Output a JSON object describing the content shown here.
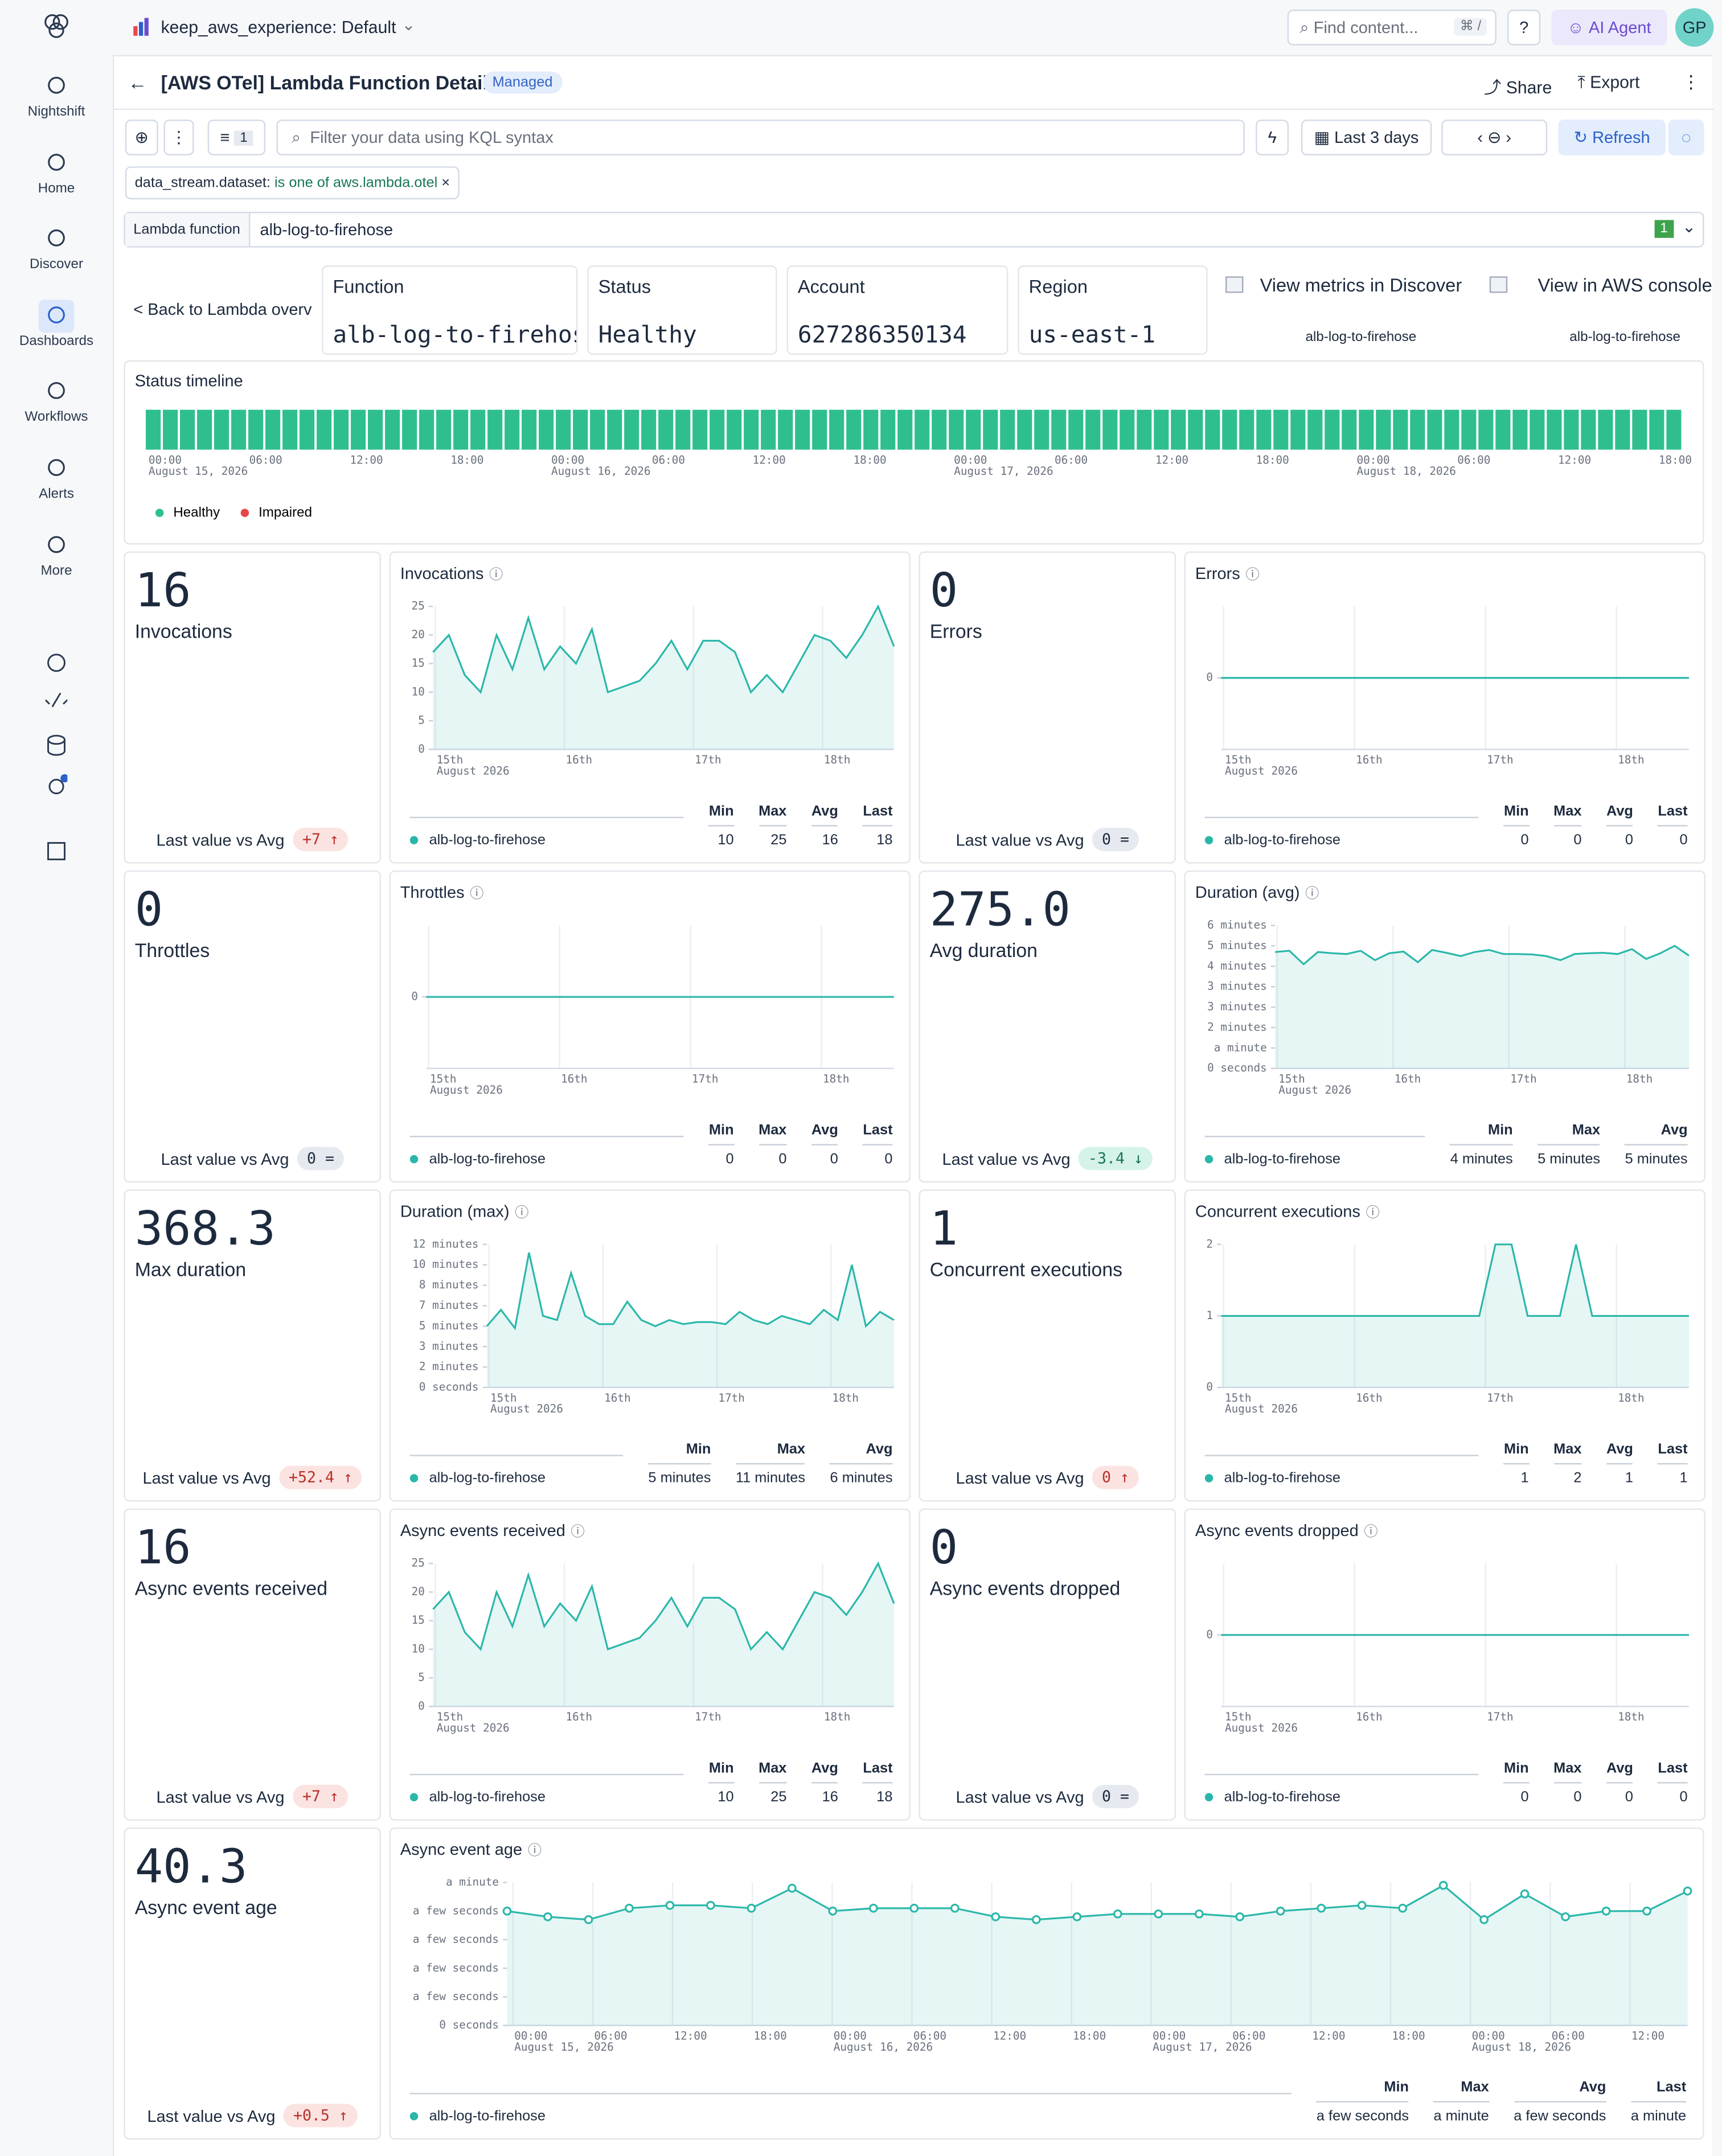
{
  "sidebar": {
    "items": [
      "Nightshift",
      "Home",
      "Discover",
      "Dashboards",
      "Workflows",
      "Alerts",
      "More"
    ],
    "active": 3
  },
  "topbar": {
    "space": "keep_aws_experience: Default",
    "search": "Find content...",
    "shortcut": "⌘ /",
    "ai": "AI Agent",
    "avatar": "GP"
  },
  "header": {
    "title": "[AWS OTel] Lambda Function Detail",
    "badge": "Managed",
    "share": "Share",
    "export": "Export"
  },
  "query": {
    "filter_count": "1",
    "placeholder": "Filter your data using KQL syntax",
    "time": "Last 3 days",
    "refresh": "Refresh"
  },
  "pill": {
    "field": "data_stream.dataset:",
    "op": "is one of",
    "value": "aws.lambda.otel"
  },
  "control": {
    "label": "Lambda function",
    "value": "alb-log-to-firehose",
    "count": "1"
  },
  "info": {
    "back": "< Back to Lambda overv",
    "cards": [
      {
        "label": "Function",
        "value": "alb-log-to-firehose"
      },
      {
        "label": "Status",
        "value": "Healthy"
      },
      {
        "label": "Account",
        "value": "627286350134"
      },
      {
        "label": "Region",
        "value": "us-east-1"
      }
    ],
    "links": [
      {
        "title": "View metrics in Discover",
        "sub": "alb-log-to-firehose"
      },
      {
        "title": "View in AWS console",
        "sub": "alb-log-to-firehose"
      }
    ]
  },
  "timeline": {
    "title": "Status timeline",
    "ticks": [
      {
        "label": "00:00",
        "date": "August 15, 2026"
      },
      {
        "label": "06:00"
      },
      {
        "label": "12:00"
      },
      {
        "label": "18:00"
      },
      {
        "label": "00:00",
        "date": "August 16, 2026"
      },
      {
        "label": "06:00"
      },
      {
        "label": "12:00"
      },
      {
        "label": "18:00"
      },
      {
        "label": "00:00",
        "date": "August 17, 2026"
      },
      {
        "label": "06:00"
      },
      {
        "label": "12:00"
      },
      {
        "label": "18:00"
      },
      {
        "label": "00:00",
        "date": "August 18, 2026"
      },
      {
        "label": "06:00"
      },
      {
        "label": "12:00"
      },
      {
        "label": "18:00"
      }
    ],
    "legend": [
      {
        "name": "Healthy",
        "color": "#2fbf8f"
      },
      {
        "name": "Impaired",
        "color": "#e7474a"
      }
    ],
    "status": [
      0,
      0,
      0,
      0,
      0,
      0,
      0,
      0,
      0,
      0,
      0,
      0,
      0,
      0,
      0,
      0,
      0,
      0,
      0,
      0,
      0,
      0,
      0,
      0,
      0,
      0,
      0,
      0,
      0,
      0,
      0,
      0,
      0,
      0,
      0,
      0,
      0,
      0,
      0,
      0,
      0,
      0,
      0,
      0,
      0,
      0,
      0,
      0,
      0,
      0,
      0,
      0,
      0,
      0,
      0,
      0,
      0,
      0,
      0,
      0,
      0,
      0,
      0,
      0,
      0,
      0,
      0,
      0,
      0,
      0,
      0,
      0,
      0,
      0,
      0,
      0,
      0,
      0,
      0,
      0,
      0,
      0,
      0,
      0,
      0,
      0,
      0,
      0,
      0,
      0
    ]
  },
  "panels": [
    {
      "metric": {
        "value": "16",
        "label": "Invocations",
        "compare": "Last value vs Avg",
        "delta": "+7 ↑",
        "tone": "up"
      },
      "chart": {
        "title": "Invocations",
        "ylim": [
          0,
          25
        ],
        "yticks": [
          0,
          5,
          10,
          15,
          20,
          25
        ],
        "xticks": [
          {
            "label": "15th",
            "date": "August 2026"
          },
          {
            "label": "16th"
          },
          {
            "label": "17th"
          },
          {
            "label": "18th"
          }
        ],
        "series": {
          "name": "alb-log-to-firehose",
          "color": "#2ab7a9",
          "values": [
            17,
            20,
            13,
            10,
            20,
            14,
            23,
            14,
            18,
            15,
            21,
            10,
            11,
            12,
            15,
            19,
            14,
            19,
            19,
            17,
            10,
            13,
            10,
            15,
            20,
            19,
            16,
            20,
            25,
            18
          ]
        },
        "stats": {
          "headers": [
            "Min",
            "Max",
            "Avg",
            "Last"
          ],
          "values": [
            10,
            25,
            16,
            18
          ]
        }
      }
    },
    {
      "metric": {
        "value": "0",
        "label": "Errors",
        "compare": "Last value vs Avg",
        "delta": "0 =",
        "tone": "flat"
      },
      "chart": {
        "title": "Errors",
        "ylim": [
          -1,
          1
        ],
        "yticks": [
          0
        ],
        "xticks": [
          {
            "label": "15th",
            "date": "August 2026"
          },
          {
            "label": "16th"
          },
          {
            "label": "17th"
          },
          {
            "label": "18th"
          }
        ],
        "series": {
          "name": "alb-log-to-firehose",
          "color": "#2ab7a9",
          "values": [
            0,
            0,
            0,
            0,
            0,
            0,
            0,
            0,
            0,
            0,
            0,
            0,
            0,
            0,
            0,
            0,
            0,
            0,
            0,
            0,
            0,
            0,
            0,
            0,
            0,
            0,
            0,
            0,
            0,
            0
          ]
        },
        "stats": {
          "headers": [
            "Min",
            "Max",
            "Avg",
            "Last"
          ],
          "values": [
            0,
            0,
            0,
            0
          ]
        }
      }
    },
    {
      "metric": {
        "value": "0",
        "label": "Throttles",
        "compare": "Last value vs Avg",
        "delta": "0 =",
        "tone": "flat"
      },
      "chart": {
        "title": "Throttles",
        "ylim": [
          -1,
          1
        ],
        "yticks": [
          0
        ],
        "xticks": [
          {
            "label": "15th",
            "date": "August 2026"
          },
          {
            "label": "16th"
          },
          {
            "label": "17th"
          },
          {
            "label": "18th"
          }
        ],
        "series": {
          "name": "alb-log-to-firehose",
          "color": "#2ab7a9",
          "values": [
            0,
            0,
            0,
            0,
            0,
            0,
            0,
            0,
            0,
            0,
            0,
            0,
            0,
            0,
            0,
            0,
            0,
            0,
            0,
            0,
            0,
            0,
            0,
            0,
            0,
            0,
            0,
            0,
            0,
            0
          ]
        },
        "stats": {
          "headers": [
            "Min",
            "Max",
            "Avg",
            "Last"
          ],
          "values": [
            0,
            0,
            0,
            0
          ]
        }
      }
    },
    {
      "metric": {
        "value": "275.0",
        "label": "Avg duration",
        "compare": "Last value vs Avg",
        "delta": "-3.4 ↓",
        "tone": "down"
      },
      "chart": {
        "title": "Duration (avg)",
        "ylim": [
          0,
          350
        ],
        "yticks": [
          {
            "value": 0,
            "label": "0 seconds"
          },
          {
            "value": 50,
            "label": "a minute"
          },
          {
            "value": 100,
            "label": "2 minutes"
          },
          {
            "value": 150,
            "label": "3 minutes"
          },
          {
            "value": 200,
            "label": "3 minutes"
          },
          {
            "value": 250,
            "label": "4 minutes"
          },
          {
            "value": 300,
            "label": "5 minutes"
          },
          {
            "value": 350,
            "label": "6 minutes"
          }
        ],
        "xticks": [
          {
            "label": "15th",
            "date": "August 2026"
          },
          {
            "label": "16th"
          },
          {
            "label": "17th"
          },
          {
            "label": "18th"
          }
        ],
        "series": {
          "name": "alb-log-to-firehose",
          "color": "#2ab7a9",
          "values": [
            285,
            288,
            255,
            285,
            282,
            280,
            288,
            265,
            282,
            286,
            260,
            290,
            283,
            275,
            285,
            290,
            280,
            280,
            279,
            275,
            265,
            280,
            282,
            283,
            280,
            292,
            268,
            282,
            300,
            276
          ]
        },
        "stats": {
          "headers": [
            "Min",
            "Max",
            "Avg"
          ],
          "values": [
            "4 minutes",
            "5 minutes",
            "5 minutes"
          ]
        }
      }
    },
    {
      "metric": {
        "value": "368.3",
        "label": "Max duration",
        "compare": "Last value vs Avg",
        "delta": "+52.4 ↑",
        "tone": "up"
      },
      "chart": {
        "title": "Duration (max)",
        "ylim": [
          0,
          700
        ],
        "yticks": [
          {
            "value": 0,
            "label": "0 seconds"
          },
          {
            "value": 100,
            "label": "2 minutes"
          },
          {
            "value": 200,
            "label": "3 minutes"
          },
          {
            "value": 300,
            "label": "5 minutes"
          },
          {
            "value": 400,
            "label": "7 minutes"
          },
          {
            "value": 500,
            "label": "8 minutes"
          },
          {
            "value": 600,
            "label": "10 minutes"
          },
          {
            "value": 700,
            "label": "12 minutes"
          }
        ],
        "xticks": [
          {
            "label": "15th",
            "date": "August 2026"
          },
          {
            "label": "16th"
          },
          {
            "label": "17th"
          },
          {
            "label": "18th"
          }
        ],
        "series": {
          "name": "alb-log-to-firehose",
          "color": "#2ab7a9",
          "values": [
            300,
            380,
            290,
            660,
            350,
            330,
            560,
            350,
            310,
            310,
            420,
            330,
            300,
            330,
            310,
            320,
            320,
            310,
            370,
            330,
            310,
            350,
            330,
            310,
            380,
            330,
            600,
            300,
            370,
            330
          ]
        },
        "stats": {
          "headers": [
            "Min",
            "Max",
            "Avg"
          ],
          "values": [
            "5 minutes",
            "11 minutes",
            "6 minutes"
          ]
        }
      }
    },
    {
      "metric": {
        "value": "1",
        "label": "Concurrent executions",
        "compare": "Last value vs Avg",
        "delta": "0 ↑",
        "tone": "up"
      },
      "chart": {
        "title": "Concurrent executions",
        "ylim": [
          0,
          2
        ],
        "yticks": [
          0,
          1,
          2
        ],
        "xticks": [
          {
            "label": "15th",
            "date": "August 2026"
          },
          {
            "label": "16th"
          },
          {
            "label": "17th"
          },
          {
            "label": "18th"
          }
        ],
        "series": {
          "name": "alb-log-to-firehose",
          "color": "#2ab7a9",
          "values": [
            1,
            1,
            1,
            1,
            1,
            1,
            1,
            1,
            1,
            1,
            1,
            1,
            1,
            1,
            1,
            1,
            1,
            2,
            2,
            1,
            1,
            1,
            2,
            1,
            1,
            1,
            1,
            1,
            1,
            1
          ]
        },
        "stats": {
          "headers": [
            "Min",
            "Max",
            "Avg",
            "Last"
          ],
          "values": [
            1,
            2,
            1,
            1
          ]
        }
      }
    },
    {
      "metric": {
        "value": "16",
        "label": "Async events received",
        "compare": "Last value vs Avg",
        "delta": "+7 ↑",
        "tone": "up"
      },
      "chart": {
        "title": "Async events received",
        "ylim": [
          0,
          25
        ],
        "yticks": [
          0,
          5,
          10,
          15,
          20,
          25
        ],
        "xticks": [
          {
            "label": "15th",
            "date": "August 2026"
          },
          {
            "label": "16th"
          },
          {
            "label": "17th"
          },
          {
            "label": "18th"
          }
        ],
        "series": {
          "name": "alb-log-to-firehose",
          "color": "#2ab7a9",
          "values": [
            17,
            20,
            13,
            10,
            20,
            14,
            23,
            14,
            18,
            15,
            21,
            10,
            11,
            12,
            15,
            19,
            14,
            19,
            19,
            17,
            10,
            13,
            10,
            15,
            20,
            19,
            16,
            20,
            25,
            18
          ]
        },
        "stats": {
          "headers": [
            "Min",
            "Max",
            "Avg",
            "Last"
          ],
          "values": [
            10,
            25,
            16,
            18
          ]
        }
      }
    },
    {
      "metric": {
        "value": "0",
        "label": "Async events dropped",
        "compare": "Last value vs Avg",
        "delta": "0 =",
        "tone": "flat"
      },
      "chart": {
        "title": "Async events dropped",
        "ylim": [
          -1,
          1
        ],
        "yticks": [
          0
        ],
        "xticks": [
          {
            "label": "15th",
            "date": "August 2026"
          },
          {
            "label": "16th"
          },
          {
            "label": "17th"
          },
          {
            "label": "18th"
          }
        ],
        "series": {
          "name": "alb-log-to-firehose",
          "color": "#2ab7a9",
          "values": [
            0,
            0,
            0,
            0,
            0,
            0,
            0,
            0,
            0,
            0,
            0,
            0,
            0,
            0,
            0,
            0,
            0,
            0,
            0,
            0,
            0,
            0,
            0,
            0,
            0,
            0,
            0,
            0,
            0,
            0
          ]
        },
        "stats": {
          "headers": [
            "Min",
            "Max",
            "Avg",
            "Last"
          ],
          "values": [
            0,
            0,
            0,
            0
          ]
        }
      }
    },
    {
      "metric": {
        "value": "40.3",
        "label": "Async event age",
        "compare": "Last value vs Avg",
        "delta": "+0.5 ↑",
        "tone": "up"
      },
      "chart": {
        "title": "Async event age",
        "markers": true,
        "ylim": [
          0,
          50
        ],
        "yticks": [
          {
            "value": 0,
            "label": "0 seconds"
          },
          {
            "value": 10,
            "label": "a few seconds"
          },
          {
            "value": 20,
            "label": "a few seconds"
          },
          {
            "value": 30,
            "label": "a few seconds"
          },
          {
            "value": 40,
            "label": "a few seconds"
          },
          {
            "value": 50,
            "label": "a minute"
          }
        ],
        "xticks": [
          {
            "label": "00:00",
            "date": "August 15, 2026"
          },
          {
            "label": "06:00"
          },
          {
            "label": "12:00"
          },
          {
            "label": "18:00"
          },
          {
            "label": "00:00",
            "date": "August 16, 2026"
          },
          {
            "label": "06:00"
          },
          {
            "label": "12:00"
          },
          {
            "label": "18:00"
          },
          {
            "label": "00:00",
            "date": "August 17, 2026"
          },
          {
            "label": "06:00"
          },
          {
            "label": "12:00"
          },
          {
            "label": "18:00"
          },
          {
            "label": "00:00",
            "date": "August 18, 2026"
          },
          {
            "label": "06:00"
          },
          {
            "label": "12:00"
          }
        ],
        "series": {
          "name": "alb-log-to-firehose",
          "color": "#2ab7a9",
          "values": [
            40,
            38,
            37,
            41,
            42,
            42,
            41,
            48,
            40,
            41,
            41,
            41,
            38,
            37,
            38,
            39,
            39,
            39,
            38,
            40,
            41,
            42,
            41,
            49,
            37,
            46,
            38,
            40,
            40,
            47
          ]
        },
        "stats": {
          "headers": [
            "Min",
            "Max",
            "Avg",
            "Last"
          ],
          "values": [
            "a few seconds",
            "a minute",
            "a few seconds",
            "a minute"
          ]
        }
      }
    }
  ]
}
